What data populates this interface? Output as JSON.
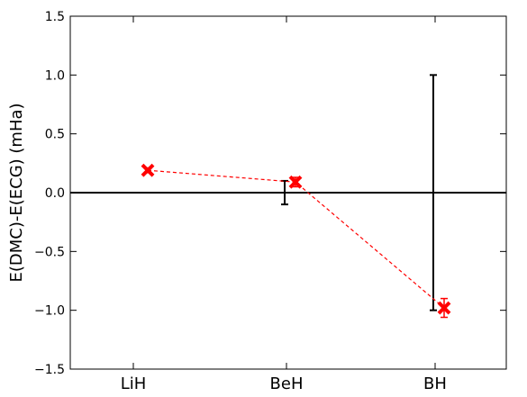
{
  "chart_data": {
    "type": "scatter",
    "title": "",
    "xlabel": "",
    "ylabel": "E(DMC)-E(ECG) (mHa)",
    "categories": [
      "LiH",
      "BeH",
      "BH"
    ],
    "ylim": [
      -1.5,
      1.5
    ],
    "yticks": [
      "1.5",
      "1.0",
      "0.5",
      "0.0",
      "−0.5",
      "−1.0",
      "−1.5"
    ],
    "ytick_values": [
      1.5,
      1.0,
      0.5,
      0.0,
      -0.5,
      -1.0,
      -1.5
    ],
    "grid": false,
    "zero_line": true,
    "series": [
      {
        "kind": "reference-error-bars",
        "color": "#000000",
        "x": [
          0,
          1,
          2
        ],
        "values": [
          0.0,
          0.0,
          0.0
        ],
        "errors": [
          0.0,
          0.1,
          1.0
        ]
      },
      {
        "kind": "dmc-minus-ecg",
        "color": "#ff0000",
        "marker": "x",
        "line_style": "dashed",
        "x": [
          0,
          1,
          2
        ],
        "values": [
          0.19,
          0.09,
          -0.98
        ],
        "errors": [
          0.02,
          0.04,
          0.08
        ]
      }
    ]
  }
}
